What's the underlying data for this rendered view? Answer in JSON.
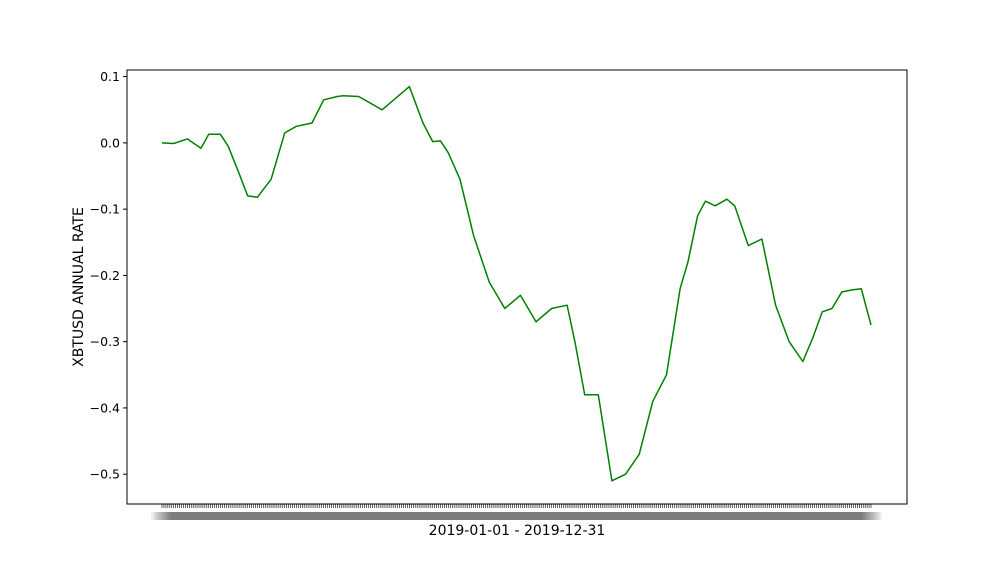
{
  "chart_data": {
    "type": "line",
    "title": "",
    "xlabel": "2019-01-01  -  2019-12-31",
    "ylabel": "XBTUSD ANNUAL RATE",
    "ylim": [
      -0.545,
      0.11
    ],
    "y_ticks": [
      0.1,
      0.0,
      -0.1,
      -0.2,
      -0.3,
      -0.4,
      -0.5
    ],
    "y_tick_labels": [
      "0.1",
      "0.0",
      "−0.1",
      "−0.2",
      "−0.3",
      "−0.4",
      "−0.5"
    ],
    "grid": false,
    "legend": "none",
    "x_tick_labels_legible": false,
    "series": [
      {
        "color": "#008000",
        "x": [
          "2019-01-01",
          "2019-01-07",
          "2019-01-14",
          "2019-01-21",
          "2019-01-25",
          "2019-01-31",
          "2019-02-04",
          "2019-02-09",
          "2019-02-14",
          "2019-02-19",
          "2019-02-26",
          "2019-03-05",
          "2019-03-11",
          "2019-03-19",
          "2019-03-25",
          "2019-04-01",
          "2019-04-04",
          "2019-04-12",
          "2019-04-24",
          "2019-05-08",
          "2019-05-15",
          "2019-05-20",
          "2019-05-24",
          "2019-05-28",
          "2019-06-03",
          "2019-06-10",
          "2019-06-18",
          "2019-06-26",
          "2019-07-04",
          "2019-07-12",
          "2019-07-20",
          "2019-07-28",
          "2019-08-01",
          "2019-08-06",
          "2019-08-13",
          "2019-08-20",
          "2019-08-27",
          "2019-09-03",
          "2019-09-10",
          "2019-09-17",
          "2019-09-24",
          "2019-09-28",
          "2019-10-03",
          "2019-10-07",
          "2019-10-12",
          "2019-10-18",
          "2019-10-22",
          "2019-10-29",
          "2019-11-05",
          "2019-11-12",
          "2019-11-19",
          "2019-11-26",
          "2019-12-01",
          "2019-12-06",
          "2019-12-11",
          "2019-12-16",
          "2019-12-21",
          "2019-12-26",
          "2019-12-31"
        ],
        "y": [
          0.0,
          -0.001,
          0.006,
          -0.008,
          0.013,
          0.013,
          -0.005,
          -0.042,
          -0.08,
          -0.082,
          -0.055,
          0.015,
          0.025,
          0.03,
          0.065,
          0.07,
          0.071,
          0.07,
          0.05,
          0.085,
          0.03,
          0.002,
          0.003,
          -0.015,
          -0.055,
          -0.14,
          -0.21,
          -0.25,
          -0.23,
          -0.27,
          -0.25,
          -0.245,
          -0.3,
          -0.38,
          -0.38,
          -0.51,
          -0.5,
          -0.47,
          -0.39,
          -0.35,
          -0.22,
          -0.18,
          -0.11,
          -0.088,
          -0.095,
          -0.085,
          -0.095,
          -0.155,
          -0.145,
          -0.245,
          -0.3,
          -0.33,
          -0.295,
          -0.255,
          -0.25,
          -0.225,
          -0.222,
          -0.22,
          -0.275
        ]
      }
    ]
  }
}
